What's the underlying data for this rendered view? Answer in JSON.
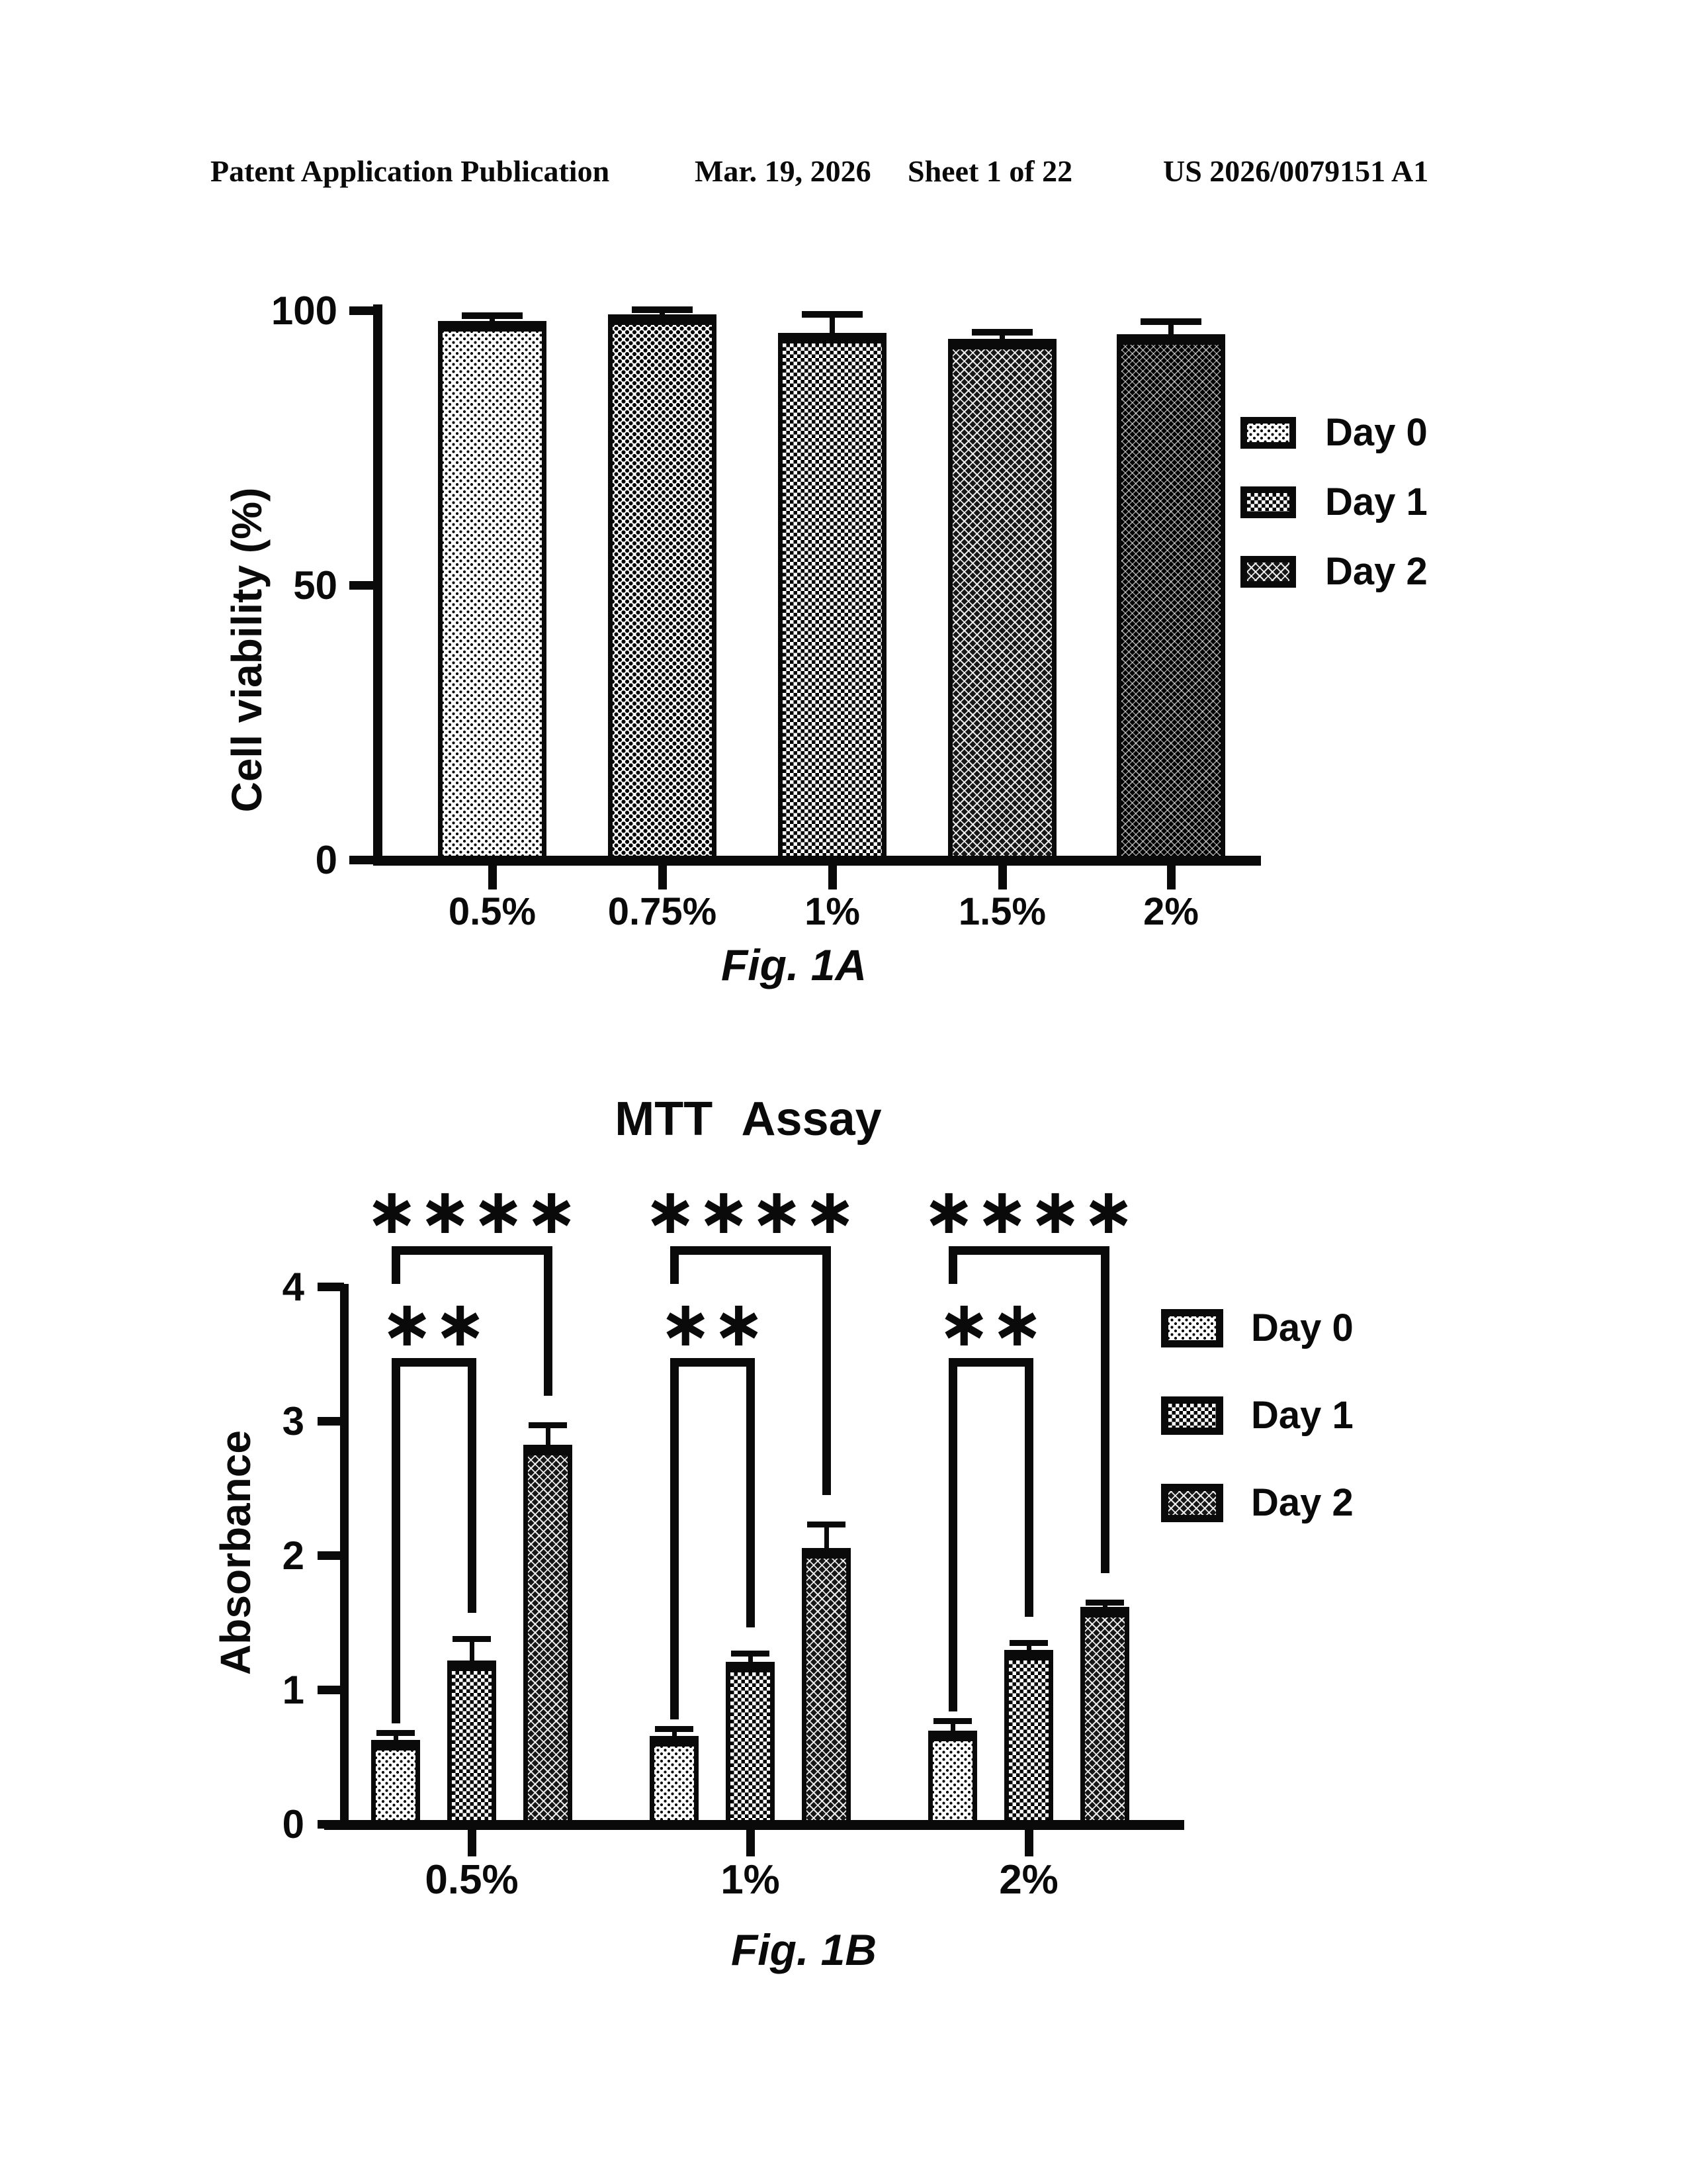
{
  "header": {
    "publication": "Patent Application Publication",
    "date": "Mar. 19, 2026",
    "sheet": "Sheet 1 of 22",
    "patent_number": "US 2026/0079151 A1"
  },
  "colors": {
    "ink": "#0a0a0a",
    "paper": "#ffffff"
  },
  "chart_data": [
    {
      "id": "fig1a",
      "type": "bar",
      "caption": "Fig. 1A",
      "ylabel": "Cell viability (%)",
      "categories": [
        "0.5%",
        "0.75%",
        "1%",
        "1.5%",
        "2%"
      ],
      "values": [
        98.2,
        99.4,
        96.0,
        94.9,
        95.8
      ],
      "errors": [
        1.0,
        0.8,
        3.4,
        1.2,
        2.3
      ],
      "ylim": [
        0,
        100
      ],
      "yticks": [
        0,
        50,
        100
      ],
      "grid": false,
      "legend_position": "right",
      "legend": [
        "Day 0",
        "Day 1",
        "Day 2"
      ],
      "hatches": [
        "dots-light",
        "dots-medium",
        "checker",
        "cross-dark",
        "cross-darkest"
      ]
    },
    {
      "id": "fig1b",
      "type": "grouped-bar",
      "title": "MTT Assay",
      "caption": "Fig. 1B",
      "ylabel": "Absorbance",
      "categories": [
        "0.5%",
        "1%",
        "2%"
      ],
      "series": [
        {
          "name": "Day 0",
          "hatch": "dots-light",
          "values": [
            0.63,
            0.66,
            0.7
          ],
          "errors": [
            0.05,
            0.05,
            0.07
          ]
        },
        {
          "name": "Day 1",
          "hatch": "checker",
          "values": [
            1.22,
            1.21,
            1.3
          ],
          "errors": [
            0.16,
            0.06,
            0.05
          ]
        },
        {
          "name": "Day 2",
          "hatch": "cross-dark",
          "values": [
            2.83,
            2.06,
            1.62
          ],
          "errors": [
            0.14,
            0.17,
            0.03
          ]
        }
      ],
      "ylim": [
        0,
        4
      ],
      "yticks": [
        0,
        1,
        2,
        3,
        4
      ],
      "grid": false,
      "legend_position": "right",
      "legend": [
        "Day 0",
        "Day 1",
        "Day 2"
      ],
      "significance": [
        {
          "comparison": "Day 0 vs Day 1",
          "label": "**",
          "applies_to": "every category group"
        },
        {
          "comparison": "Day 0 vs Day 2",
          "label": "****",
          "applies_to": "every category group"
        }
      ]
    }
  ]
}
